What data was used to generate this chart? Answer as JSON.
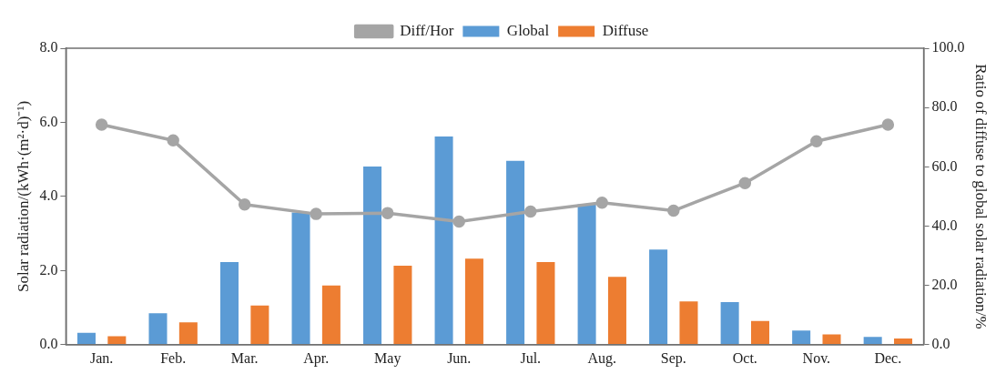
{
  "chart_data": {
    "type": "bar",
    "ylabel": "Solar radiation/(kWh·(m²·d)⁻¹)",
    "y2label": "Ratio of diffuse to global solar radiation/%",
    "categories": [
      "Jan.",
      "Feb.",
      "Mar.",
      "Apr.",
      "May",
      "Jun.",
      "Jul.",
      "Aug.",
      "Sep.",
      "Oct.",
      "Nov.",
      "Dec."
    ],
    "series": [
      {
        "name": "Global",
        "color": "#5b9bd5",
        "values": [
          0.32,
          0.85,
          2.23,
          3.57,
          4.81,
          5.62,
          4.96,
          3.79,
          2.57,
          1.15,
          0.38,
          0.21
        ]
      },
      {
        "name": "Diffuse",
        "color": "#ed7d31",
        "values": [
          0.23,
          0.6,
          1.06,
          1.6,
          2.13,
          2.32,
          2.23,
          1.83,
          1.17,
          0.64,
          0.28,
          0.17
        ]
      },
      {
        "name": "Diff/Hor",
        "type": "line",
        "axis": "y2",
        "color": "#a5a5a5",
        "marker": "circle",
        "values": [
          74.2,
          68.9,
          47.3,
          44.1,
          44.4,
          41.5,
          44.9,
          47.9,
          45.2,
          54.5,
          68.6,
          74.2
        ]
      }
    ],
    "ylim": [
      0,
      8
    ],
    "yticks": [
      {
        "value": 0,
        "label": "0.0"
      },
      {
        "value": 2,
        "label": "2.0"
      },
      {
        "value": 4,
        "label": "4.0"
      },
      {
        "value": 6,
        "label": "6.0"
      },
      {
        "value": 8,
        "label": "8.0"
      }
    ],
    "y2lim": [
      0,
      100
    ],
    "y2ticks": [
      {
        "value": 0,
        "label": "0.0"
      },
      {
        "value": 20,
        "label": "20.0"
      },
      {
        "value": 40,
        "label": "40.0"
      },
      {
        "value": 60,
        "label": "60.0"
      },
      {
        "value": 80,
        "label": "80.0"
      },
      {
        "value": 100,
        "label": "100.0"
      }
    ],
    "grid": false,
    "legend": "top"
  }
}
